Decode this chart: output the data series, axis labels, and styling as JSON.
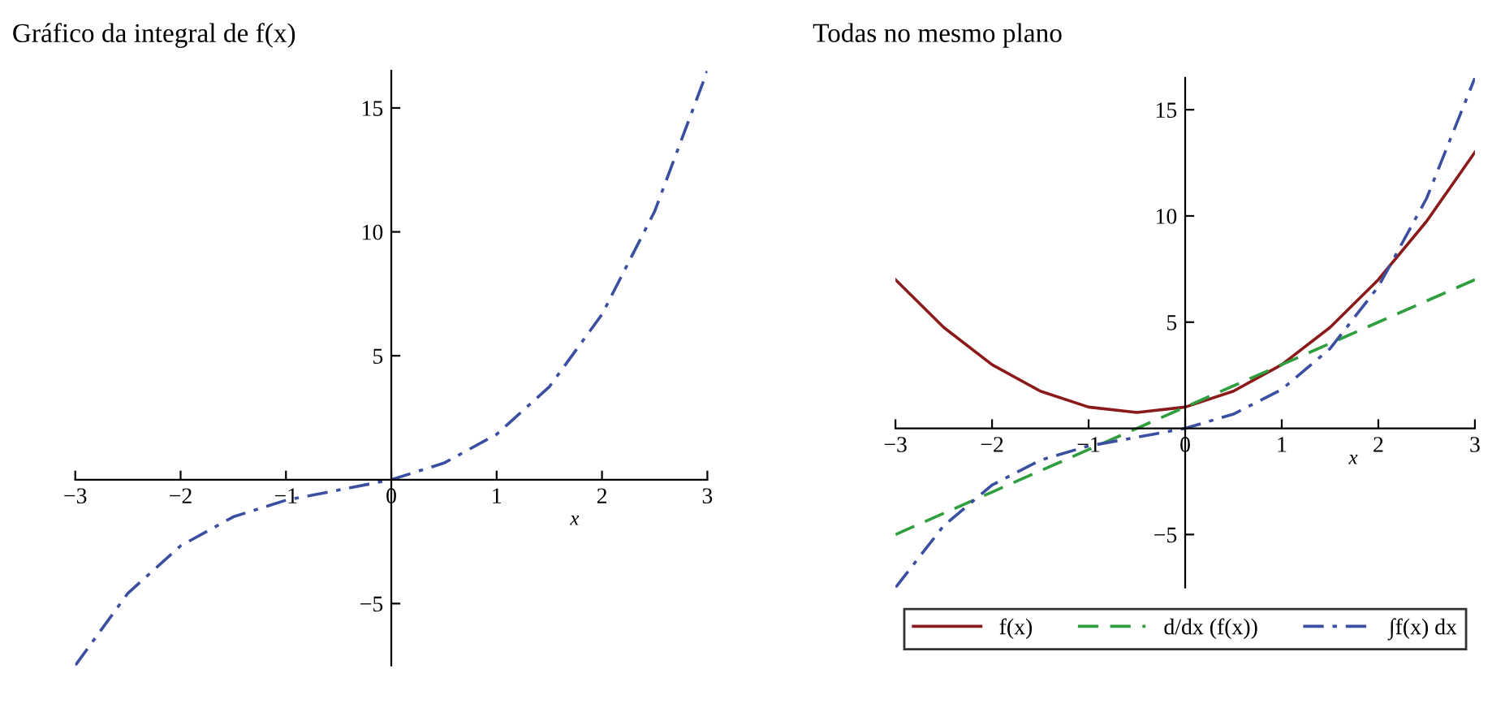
{
  "chart_data": [
    {
      "type": "line",
      "title": "Gráfico da integral de f(x)",
      "xlabel": "x",
      "xlim": [
        -3,
        3
      ],
      "ylim": [
        -7.5,
        16.5
      ],
      "xticks": [
        {
          "value": -3,
          "label": "−3"
        },
        {
          "value": -2,
          "label": "−2"
        },
        {
          "value": -1,
          "label": "−1"
        },
        {
          "value": 0,
          "label": "0"
        },
        1,
        2,
        3
      ],
      "yticks": [
        {
          "value": -5,
          "label": "−5"
        },
        5,
        10,
        15
      ],
      "grid": false,
      "legend": false,
      "series": [
        {
          "color": "#3a4fa0",
          "line_style": "dashdot",
          "x": [
            -3,
            -2.5,
            -2,
            -1.5,
            -1,
            -0.5,
            0,
            0.5,
            1,
            1.5,
            2,
            2.5,
            3
          ],
          "values": [
            -7.5,
            -4.58,
            -2.67,
            -1.5,
            -0.83,
            -0.42,
            0,
            0.67,
            1.83,
            3.75,
            6.67,
            10.83,
            16.5
          ]
        }
      ]
    },
    {
      "type": "line",
      "title": "Todas no mesmo plano",
      "xlabel": "x",
      "xlim": [
        -3,
        3
      ],
      "ylim": [
        -7.5,
        16.5
      ],
      "xticks": [
        {
          "value": -3,
          "label": "−3"
        },
        {
          "value": -2,
          "label": "−2"
        },
        {
          "value": -1,
          "label": "−1"
        },
        {
          "value": 0,
          "label": "0"
        },
        1,
        2,
        3
      ],
      "yticks": [
        {
          "value": -5,
          "label": "−5"
        },
        5,
        10,
        15
      ],
      "grid": false,
      "legend": "bottom",
      "series": [
        {
          "name": "f(x)",
          "color": "#8b1a1a",
          "line_style": "solid",
          "x": [
            -3,
            -2.5,
            -2,
            -1.5,
            -1,
            -0.5,
            0,
            0.5,
            1,
            1.5,
            2,
            2.5,
            3
          ],
          "values": [
            7,
            4.75,
            3,
            1.75,
            1,
            0.75,
            1,
            1.75,
            3,
            4.75,
            7,
            9.75,
            13
          ]
        },
        {
          "name": "d/dx (f(x))",
          "color": "#2e9e3e",
          "line_style": "dashed",
          "x": [
            -3,
            -2.5,
            -2,
            -1.5,
            -1,
            -0.5,
            0,
            0.5,
            1,
            1.5,
            2,
            2.5,
            3
          ],
          "values": [
            -5,
            -4,
            -3,
            -2,
            -1,
            0,
            1,
            2,
            3,
            4,
            5,
            6,
            7
          ]
        },
        {
          "name": "∫f(x) dx",
          "color": "#3a4fa0",
          "line_style": "dashdot",
          "x": [
            -3,
            -2.5,
            -2,
            -1.5,
            -1,
            -0.5,
            0,
            0.5,
            1,
            1.5,
            2,
            2.5,
            3
          ],
          "values": [
            -7.5,
            -4.58,
            -2.67,
            -1.5,
            -0.83,
            -0.42,
            0,
            0.67,
            1.83,
            3.75,
            6.67,
            10.83,
            16.5
          ]
        }
      ]
    }
  ]
}
